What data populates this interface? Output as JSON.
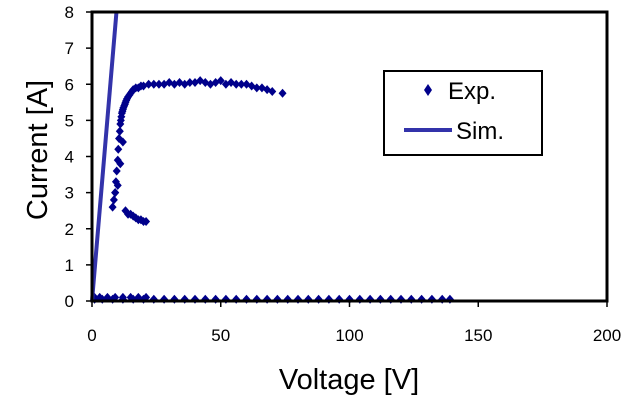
{
  "chart_data": {
    "type": "scatter",
    "title": "",
    "xlabel": "Voltage [V]",
    "ylabel": "Current [A]",
    "xlim": [
      0,
      200
    ],
    "ylim": [
      0,
      8
    ],
    "x_ticks": [
      0,
      50,
      100,
      150,
      200
    ],
    "y_ticks": [
      0,
      1,
      2,
      3,
      4,
      5,
      6,
      7,
      8
    ],
    "grid": false,
    "legend_position": "top-right",
    "colors": {
      "series": "#00008b",
      "line": "#3333aa",
      "frame": "#000000"
    },
    "series": [
      {
        "name": "Exp.",
        "marker": "diamond",
        "x": [
          1,
          4,
          8,
          12,
          16,
          20,
          24,
          28,
          32,
          36,
          40,
          44,
          48,
          52,
          56,
          60,
          64,
          68,
          72,
          76,
          80,
          84,
          88,
          92,
          96,
          100,
          104,
          108,
          112,
          116,
          120,
          124,
          128,
          132,
          136,
          139,
          1,
          3,
          6,
          9,
          12,
          15,
          18,
          21,
          8,
          8.5,
          9,
          9.3,
          9.6,
          10,
          10.2,
          10.5,
          10.8,
          11,
          11.2,
          11.4,
          11.6,
          11.8,
          12,
          12.2,
          12.5,
          12.8,
          13,
          13.3,
          13.6,
          14,
          14.5,
          15,
          15.5,
          16,
          17,
          18,
          19,
          20,
          22,
          24,
          26,
          28,
          30,
          32,
          34,
          36,
          38,
          40,
          42,
          44,
          46,
          48,
          50,
          52,
          54,
          56,
          58,
          60,
          62,
          64,
          66,
          68,
          70,
          74,
          9,
          10,
          11,
          12,
          13,
          14,
          15,
          16,
          17,
          18,
          19,
          20,
          21
        ],
        "y": [
          0.05,
          0.05,
          0.05,
          0.05,
          0.05,
          0.05,
          0.05,
          0.05,
          0.05,
          0.05,
          0.05,
          0.05,
          0.05,
          0.05,
          0.05,
          0.05,
          0.05,
          0.05,
          0.05,
          0.05,
          0.05,
          0.05,
          0.05,
          0.05,
          0.05,
          0.05,
          0.05,
          0.05,
          0.05,
          0.05,
          0.05,
          0.05,
          0.05,
          0.05,
          0.05,
          0.05,
          0.1,
          0.1,
          0.1,
          0.1,
          0.1,
          0.1,
          0.1,
          0.1,
          2.6,
          2.8,
          3.0,
          3.3,
          3.6,
          3.9,
          4.2,
          4.5,
          4.7,
          4.9,
          5.0,
          5.1,
          5.2,
          5.25,
          5.3,
          5.35,
          5.4,
          5.45,
          5.5,
          5.55,
          5.6,
          5.65,
          5.7,
          5.75,
          5.8,
          5.85,
          5.9,
          5.9,
          5.95,
          5.95,
          6.0,
          6.0,
          6.0,
          6.0,
          6.05,
          6.0,
          6.05,
          6.0,
          6.05,
          6.05,
          6.1,
          6.05,
          6.0,
          6.05,
          6.1,
          6.0,
          6.05,
          6.0,
          6.0,
          6.0,
          5.95,
          5.9,
          5.9,
          5.85,
          5.8,
          5.75,
          3.0,
          3.2,
          3.8,
          4.4,
          2.5,
          2.4,
          2.4,
          2.35,
          2.3,
          2.25,
          2.25,
          2.2,
          2.2
        ]
      },
      {
        "name": "Sim.",
        "line": true,
        "x": [
          0,
          9.5
        ],
        "y": [
          0,
          8.0
        ]
      }
    ]
  }
}
